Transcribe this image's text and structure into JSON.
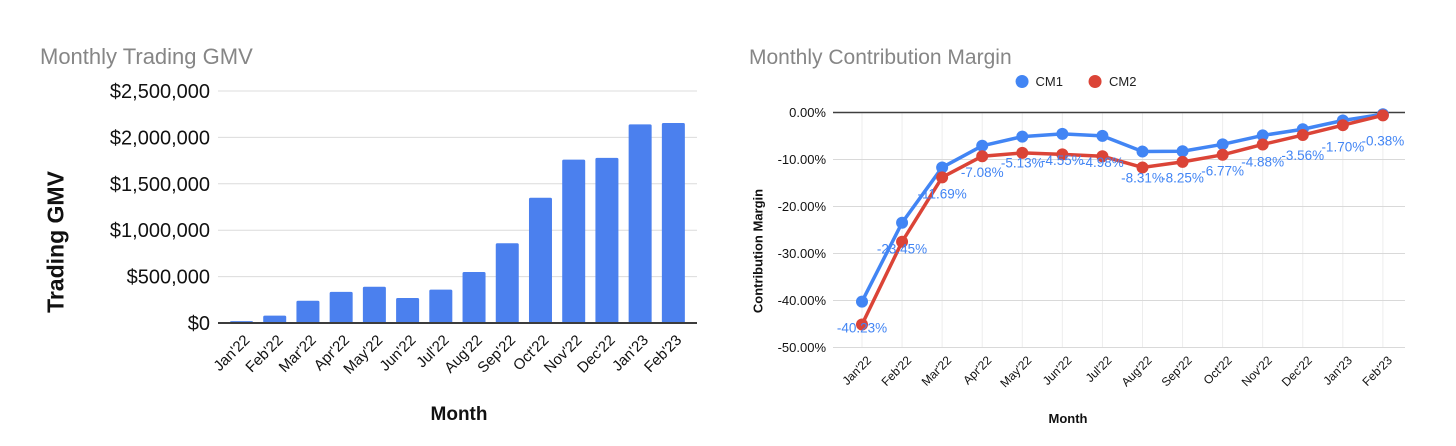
{
  "page": {
    "background": "#ffffff",
    "title_color": "#868686"
  },
  "chart_data": [
    {
      "type": "bar",
      "title": "Monthly Trading GMV",
      "xlabel": "Month",
      "ylabel": "Trading GMV",
      "categories": [
        "Jan'22",
        "Feb'22",
        "Mar'22",
        "Apr'22",
        "May'22",
        "Jun'22",
        "Jul'22",
        "Aug'22",
        "Sep'22",
        "Oct'22",
        "Nov'22",
        "Dec'22",
        "Jan'23",
        "Feb'23"
      ],
      "values": [
        20000,
        80000,
        240000,
        335000,
        390000,
        270000,
        360000,
        550000,
        860000,
        1350000,
        1760000,
        1780000,
        2140000,
        2155000
      ],
      "ylim": [
        0,
        2500000
      ],
      "ytick_labels": [
        "$0",
        "$500,000",
        "$1,000,000",
        "$1,500,000",
        "$2,000,000",
        "$2,500,000"
      ],
      "ytick_values": [
        0,
        500000,
        1000000,
        1500000,
        2000000,
        2500000
      ],
      "bar_color": "#4b80ee",
      "grid": "horizontal",
      "baseline_color": "#3c3c3c"
    },
    {
      "type": "line",
      "title": "Monthly Contribution Margin",
      "xlabel": "Month",
      "ylabel": "Contribution Margin",
      "categories": [
        "Jan'22",
        "Feb'22",
        "Mar'22",
        "Apr'22",
        "May'22",
        "Jun'22",
        "Jul'22",
        "Aug'22",
        "Sep'22",
        "Oct'22",
        "Nov'22",
        "Dec'22",
        "Jan'23",
        "Feb'23"
      ],
      "series": [
        {
          "name": "CM1",
          "color": "#4285f4",
          "values": [
            -40.23,
            -23.45,
            -11.69,
            -7.08,
            -5.13,
            -4.55,
            -4.98,
            -8.31,
            -8.25,
            -6.77,
            -4.88,
            -3.56,
            -1.7,
            -0.38
          ],
          "point_labels": [
            "-40.23%",
            "-23.45%",
            "-11.69%",
            "-7.08%",
            "-5.13%",
            "-4.55%",
            "-4.98%",
            "-8.31%",
            "-8.25%",
            "-6.77%",
            "-4.88%",
            "-3.56%",
            "-1.70%",
            "-0.38%"
          ]
        },
        {
          "name": "CM2",
          "color": "#db4437",
          "values": [
            -45.1,
            -27.5,
            -13.8,
            -9.3,
            -8.6,
            -8.9,
            -9.3,
            -11.7,
            -10.5,
            -9.0,
            -6.8,
            -4.8,
            -2.7,
            -0.6
          ]
        }
      ],
      "ylim": [
        -50,
        0
      ],
      "ytick_labels": [
        "0.00%",
        "-10.00%",
        "-20.00%",
        "-30.00%",
        "-40.00%",
        "-50.00%"
      ],
      "ytick_values": [
        0,
        -10,
        -20,
        -30,
        -40,
        -50
      ],
      "legend_position": "top",
      "data_label_color": "#4285f4",
      "grid": "horizontal+vertical",
      "zero_line_color": "#3f3f3f"
    }
  ]
}
